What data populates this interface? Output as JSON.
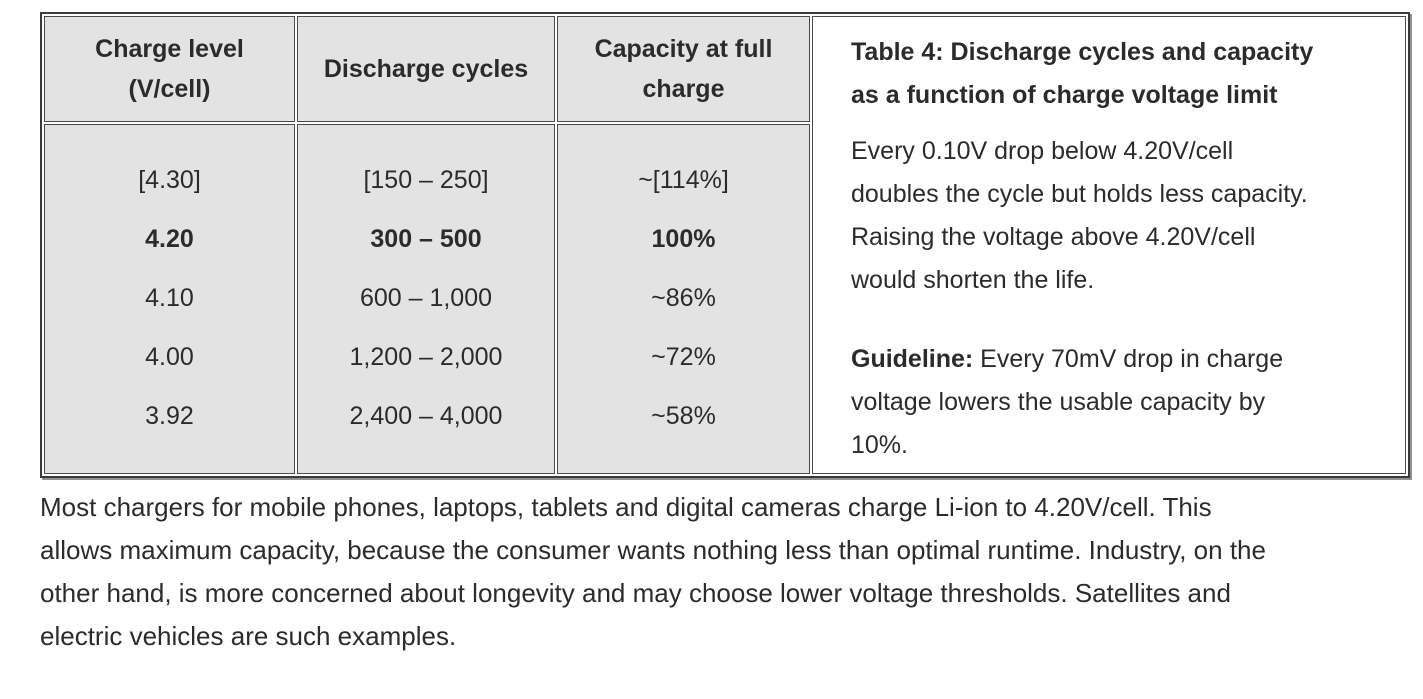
{
  "table": {
    "headers": [
      "Charge level\n(V/cell)",
      "Discharge cycles",
      "Capacity at full\ncharge"
    ],
    "rows": [
      {
        "charge": "[4.30]",
        "cycles": "[150 – 250]",
        "capacity": "~[114%]"
      },
      {
        "charge": "4.20",
        "cycles": "300 – 500",
        "capacity": "100%"
      },
      {
        "charge": "4.10",
        "cycles": "600 – 1,000",
        "capacity": "~86%"
      },
      {
        "charge": "4.00",
        "cycles": "1,200 – 2,000",
        "capacity": "~72%"
      },
      {
        "charge": "3.92",
        "cycles": "2,400 – 4,000",
        "capacity": "~58%"
      }
    ],
    "bold_row_index": 1
  },
  "panel": {
    "title": "Table 4: Discharge cycles and capacity\nas a function of charge voltage limit",
    "paragraph1": "Every 0.10V drop below 4.20V/cell\ndoubles the cycle but holds less capacity.\nRaising the voltage above 4.20V/cell\nwould shorten the life.",
    "guideline_label": "Guideline:",
    "guideline_text": " Every 70mV drop in charge\nvoltage lowers the usable capacity by\n10%."
  },
  "bottom_paragraph": "Most chargers for mobile phones, laptops, tablets and digital cameras charge Li-ion to 4.20V/cell. This\nallows maximum capacity, because the consumer wants nothing less than optimal runtime. Industry, on the\nother hand, is more concerned about longevity and may choose lower voltage thresholds. Satellites and\nelectric vehicles are such examples.",
  "colors": {
    "cell_background": "#e3e3e3",
    "border_dark": "#3a3a3a",
    "cell_border": "#4c4c4c",
    "shadow": "#929292",
    "text": "#2b2b2b",
    "panel_background": "#ffffff"
  }
}
